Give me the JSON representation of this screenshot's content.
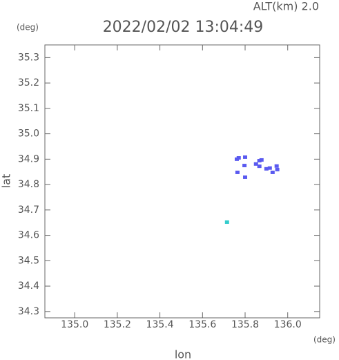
{
  "chart_data": {
    "type": "scatter",
    "title": "2022/02/02 13:04:49",
    "annotation": "ALT(km) 2.0",
    "y_unit": "(deg)",
    "x_unit": "(deg)",
    "x_label": "lon",
    "y_label": "lat",
    "xlim": [
      134.86,
      136.15
    ],
    "ylim": [
      34.275,
      35.35
    ],
    "xticks": [
      {
        "value": 135,
        "label": "135.0"
      },
      135.2,
      135.4,
      135.6,
      135.8,
      {
        "value": 136,
        "label": "136.0"
      }
    ],
    "yticks": [
      34.3,
      34.4,
      34.5,
      34.6,
      34.7,
      34.8,
      34.9,
      {
        "value": 35,
        "label": "35.0"
      },
      35.1,
      35.2,
      35.3
    ],
    "series": [
      {
        "color": "#5a5af0",
        "x": [
          135.761,
          135.77,
          135.8,
          135.797,
          135.764,
          135.8,
          135.851,
          135.867,
          135.877,
          135.867,
          135.9,
          135.916,
          135.929,
          135.948,
          135.951
        ],
        "values": [
          34.9,
          34.905,
          34.908,
          34.875,
          34.848,
          34.829,
          34.881,
          34.894,
          34.897,
          34.872,
          34.862,
          34.865,
          34.848,
          34.873,
          34.859
        ]
      },
      {
        "color": "#33cccc",
        "x": [
          135.715
        ],
        "values": [
          34.652
        ]
      }
    ]
  }
}
